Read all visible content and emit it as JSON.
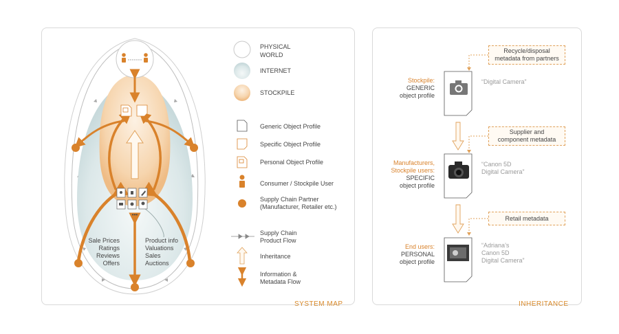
{
  "system_map": {
    "caption": "SYSTEM MAP",
    "legend": {
      "physical_world": "PHYSICAL WORLD",
      "internet": "INTERNET",
      "stockpile": "STOCKPILE",
      "generic_profile": "Generic Object Profile",
      "specific_profile": "Specific Object Profile",
      "personal_profile": "Personal Object Profile",
      "consumer": "Consumer / Stockpile User",
      "partner_line1": "Supply Chain Partner",
      "partner_line2": "(Manufacturer, Retailer etc.)",
      "flow_line1": "Supply Chain",
      "flow_line2": "Product Flow",
      "inheritance": "Inheritance",
      "info_line1": "Information &",
      "info_line2": "Metadata Flow"
    },
    "left_labels": [
      "Sale Prices",
      "Ratings",
      "Reviews",
      "Offers"
    ],
    "right_labels": [
      "Product info",
      "Valuations",
      "Sales",
      "Auctions"
    ],
    "ellipsis": "•••"
  },
  "inheritance": {
    "caption": "INHERITANCE",
    "levels": [
      {
        "role": "Stockpile:",
        "kind": "GENERIC",
        "profile": "object profile",
        "quote": [
          "“Digital Camera”"
        ],
        "metadata": [
          "Recycle/disposal",
          "metadata from partners"
        ]
      },
      {
        "role": [
          "Manufacturers,",
          "Stockpile users:"
        ],
        "kind": "SPECIFIC",
        "profile": "object profile",
        "quote": [
          "“Canon 5D",
          "Digital Camera”"
        ],
        "metadata": [
          "Supplier and",
          "component metadata"
        ]
      },
      {
        "role": "End users:",
        "kind": "PERSONAL",
        "profile": "object profile",
        "quote": [
          "“Adriana’s",
          "Canon 5D",
          "Digital Camera”"
        ],
        "metadata": [
          "Retail metadata"
        ]
      }
    ]
  },
  "colors": {
    "accent": "#d9822b",
    "stockpile": "#f3c99a",
    "internet": "#d4e3e4",
    "gray_text": "#9a9a9a"
  }
}
